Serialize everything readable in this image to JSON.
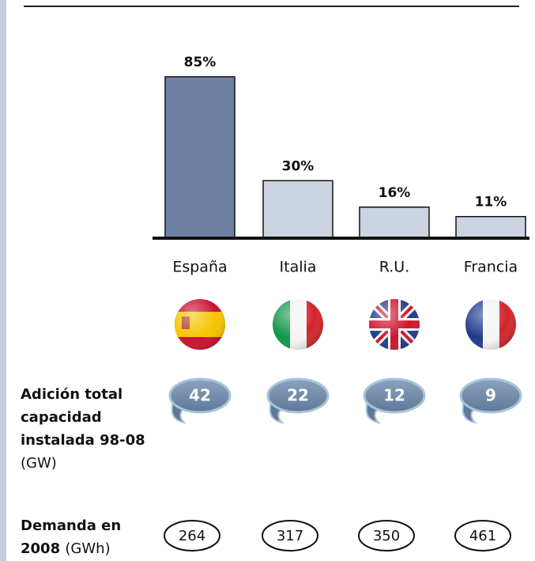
{
  "chart_data": {
    "type": "bar",
    "categories": [
      "España",
      "Italia",
      "R.U.",
      "Francia"
    ],
    "values": [
      85,
      30,
      16,
      11
    ],
    "value_labels": [
      "85%",
      "30%",
      "16%",
      "11%"
    ],
    "colors": [
      "#6e7fa4",
      "#ccd4e1",
      "#ccd4e1",
      "#ccd4e1"
    ]
  },
  "capacity": {
    "label": "Adición total capacidad instalada 98-08",
    "unit": "(GW)",
    "values": [
      42,
      22,
      12,
      9
    ]
  },
  "demand": {
    "label": "Demanda en 2008",
    "unit": "(GWh)",
    "values": [
      264,
      317,
      350,
      461
    ]
  }
}
